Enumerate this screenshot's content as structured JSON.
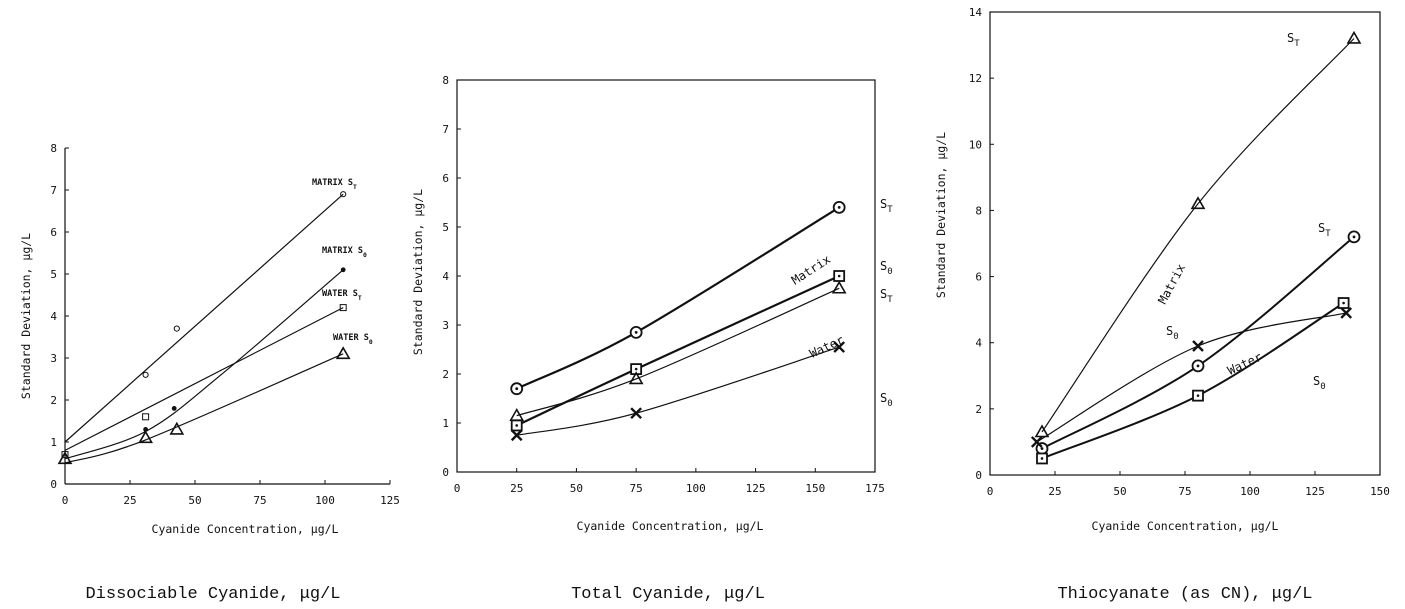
{
  "chart_data": [
    {
      "type": "line",
      "title": "Dissociable Cyanide, μg/L",
      "xlabel": "Cyanide Concentration, μg/L",
      "ylabel": "Standard Deviation, μg/L",
      "xlim": [
        0,
        125
      ],
      "ylim": [
        0,
        8
      ],
      "xticks": [
        "0",
        "25",
        "50",
        "75",
        "100",
        "125"
      ],
      "yticks": [
        "0",
        "1",
        "2",
        "3",
        "4",
        "5",
        "6",
        "7",
        "8"
      ],
      "annotations": [
        "MATRIX S_T",
        "MATRIX S_0",
        "WATER S_T",
        "WATER S_0"
      ],
      "series": [
        {
          "name": "MATRIX S_T",
          "marker": "circle",
          "x": [
            31,
            43,
            107
          ],
          "y": [
            2.6,
            3.7,
            6.9
          ],
          "fit": [
            [
              0,
              1.0
            ],
            [
              107,
              6.9
            ]
          ]
        },
        {
          "name": "MATRIX S_0",
          "marker": "dot",
          "x": [
            31,
            42,
            107
          ],
          "y": [
            1.3,
            1.8,
            5.1
          ],
          "fit": [
            [
              0,
              0.6
            ],
            [
              31,
              1.25
            ],
            [
              60,
              2.6
            ],
            [
              107,
              5.1
            ]
          ]
        },
        {
          "name": "WATER S_T",
          "marker": "square",
          "x": [
            0,
            31,
            107
          ],
          "y": [
            0.7,
            1.6,
            4.2
          ],
          "fit": [
            [
              0,
              0.8
            ],
            [
              107,
              4.2
            ]
          ]
        },
        {
          "name": "WATER S_0",
          "marker": "triangle",
          "x": [
            0,
            31,
            43,
            107
          ],
          "y": [
            0.6,
            1.1,
            1.3,
            3.1
          ],
          "fit": [
            [
              0,
              0.5
            ],
            [
              31,
              1.05
            ],
            [
              107,
              3.1
            ]
          ]
        }
      ]
    },
    {
      "type": "line",
      "title": "Total Cyanide, μg/L",
      "xlabel": "Cyanide Concentration, μg/L",
      "ylabel": "Standard Deviation, μg/L",
      "xlim": [
        0,
        175
      ],
      "ylim": [
        0,
        8
      ],
      "xticks": [
        "0",
        "25",
        "50",
        "75",
        "100",
        "125",
        "150",
        "175"
      ],
      "yticks": [
        "0",
        "1",
        "2",
        "3",
        "4",
        "5",
        "6",
        "7",
        "8"
      ],
      "annotations": [
        "Matrix",
        "Water",
        "S_T",
        "S_0",
        "S_T",
        "S_0"
      ],
      "series": [
        {
          "name": "S_T",
          "marker": "circle-dot",
          "x": [
            25,
            75,
            160
          ],
          "y": [
            1.7,
            2.85,
            5.4
          ]
        },
        {
          "name": "S_0",
          "marker": "square-dot",
          "x": [
            25,
            75,
            160
          ],
          "y": [
            0.95,
            2.1,
            4.0
          ]
        },
        {
          "name": "S_T",
          "marker": "triangle",
          "x": [
            25,
            75,
            160
          ],
          "y": [
            1.15,
            1.9,
            3.75
          ]
        },
        {
          "name": "S_0",
          "marker": "cross",
          "x": [
            25,
            75,
            160
          ],
          "y": [
            0.75,
            1.2,
            2.55
          ]
        }
      ]
    },
    {
      "type": "line",
      "title": "Thiocyanate (as CN), μg/L",
      "xlabel": "Cyanide Concentration, μg/L",
      "ylabel": "Standard Deviation, μg/L",
      "xlim": [
        0,
        150
      ],
      "ylim": [
        0,
        14
      ],
      "xticks": [
        "0",
        "25",
        "50",
        "75",
        "100",
        "125",
        "150"
      ],
      "yticks": [
        "0",
        "2",
        "4",
        "6",
        "8",
        "10",
        "12",
        "14"
      ],
      "annotations": [
        "Matrix",
        "Water",
        "S_T",
        "S_T",
        "S_0",
        "S_0"
      ],
      "series": [
        {
          "name": "S_T",
          "marker": "triangle",
          "x": [
            20,
            80,
            140
          ],
          "y": [
            1.3,
            8.2,
            13.2
          ]
        },
        {
          "name": "S_T",
          "marker": "circle-dot",
          "x": [
            20,
            80,
            140
          ],
          "y": [
            0.8,
            3.3,
            7.2
          ]
        },
        {
          "name": "S_0",
          "marker": "cross",
          "x": [
            18,
            80,
            137
          ],
          "y": [
            1.0,
            3.9,
            4.9
          ]
        },
        {
          "name": "S_0",
          "marker": "square-dot",
          "x": [
            20,
            80,
            136
          ],
          "y": [
            0.5,
            2.4,
            5.2
          ]
        }
      ]
    }
  ]
}
